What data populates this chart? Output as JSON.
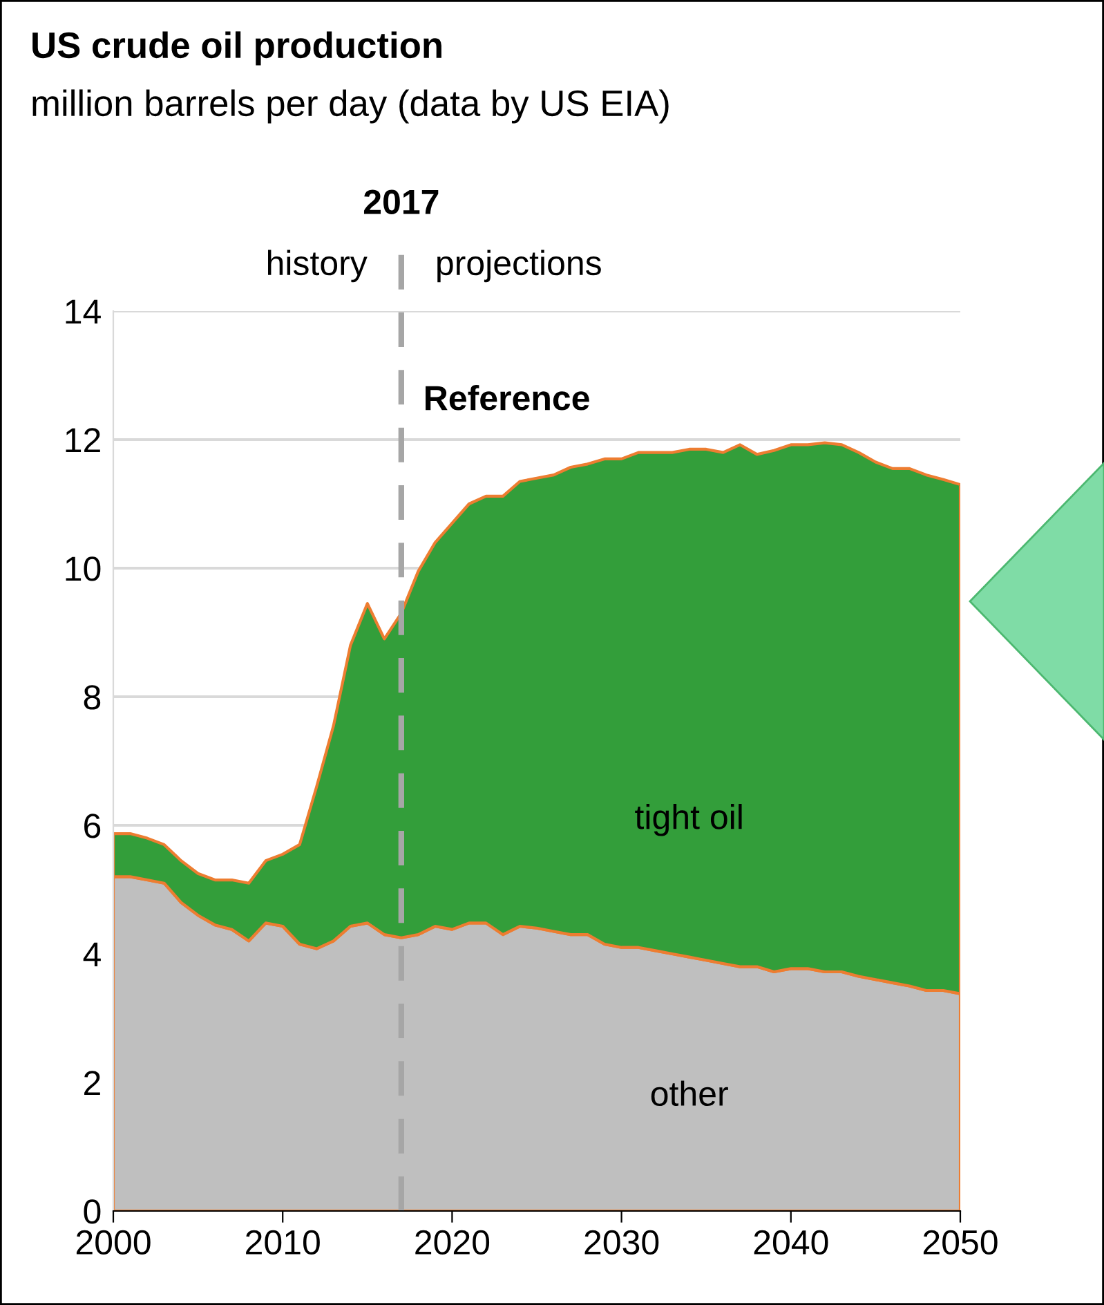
{
  "chart_data": {
    "type": "area",
    "stacked": true,
    "title": "US crude oil production",
    "subtitle": "million barrels per day (data by US EIA)",
    "x": [
      2000,
      2001,
      2002,
      2003,
      2004,
      2005,
      2006,
      2007,
      2008,
      2009,
      2010,
      2011,
      2012,
      2013,
      2014,
      2015,
      2016,
      2017,
      2018,
      2019,
      2020,
      2021,
      2022,
      2023,
      2024,
      2025,
      2026,
      2027,
      2028,
      2029,
      2030,
      2031,
      2032,
      2033,
      2034,
      2035,
      2036,
      2037,
      2038,
      2039,
      2040,
      2041,
      2042,
      2043,
      2044,
      2045,
      2046,
      2047,
      2048,
      2049,
      2050
    ],
    "series": [
      {
        "name": "other",
        "color": "#bfbfbf",
        "values": [
          5.2,
          5.2,
          5.15,
          5.1,
          4.8,
          4.6,
          4.45,
          4.38,
          4.2,
          4.48,
          4.43,
          4.15,
          4.08,
          4.2,
          4.43,
          4.48,
          4.3,
          4.25,
          4.3,
          4.43,
          4.38,
          4.48,
          4.48,
          4.3,
          4.43,
          4.4,
          4.35,
          4.3,
          4.3,
          4.15,
          4.1,
          4.1,
          4.05,
          4.0,
          3.95,
          3.9,
          3.85,
          3.8,
          3.8,
          3.72,
          3.77,
          3.77,
          3.72,
          3.72,
          3.65,
          3.6,
          3.55,
          3.5,
          3.43,
          3.43,
          3.38
        ]
      },
      {
        "name": "tight oil",
        "color": "#339e3a",
        "values": [
          0.67,
          0.67,
          0.65,
          0.6,
          0.65,
          0.65,
          0.7,
          0.77,
          0.9,
          0.97,
          1.12,
          1.55,
          2.52,
          3.35,
          4.37,
          4.97,
          4.6,
          5.05,
          5.65,
          5.97,
          6.32,
          6.52,
          6.64,
          6.82,
          6.92,
          7.0,
          7.1,
          7.27,
          7.32,
          7.55,
          7.6,
          7.7,
          7.75,
          7.8,
          7.9,
          7.95,
          7.95,
          8.12,
          7.97,
          8.11,
          8.15,
          8.15,
          8.23,
          8.2,
          8.15,
          8.05,
          8.0,
          8.05,
          8.02,
          7.95,
          7.92
        ]
      }
    ],
    "xlim": [
      2000,
      2050
    ],
    "xticks": [
      2000,
      2010,
      2020,
      2030,
      2040,
      2050
    ],
    "ylim": [
      0,
      14
    ],
    "yticks": [
      0,
      2,
      4,
      6,
      8,
      10,
      12,
      14
    ],
    "grid": "y",
    "ref_lines": [
      {
        "axis": "x",
        "value": 2017,
        "label": "2017",
        "color": "#a6a6a6",
        "line_style": "dashed"
      }
    ],
    "annotations": [
      "history",
      "projections",
      "Reference"
    ]
  }
}
